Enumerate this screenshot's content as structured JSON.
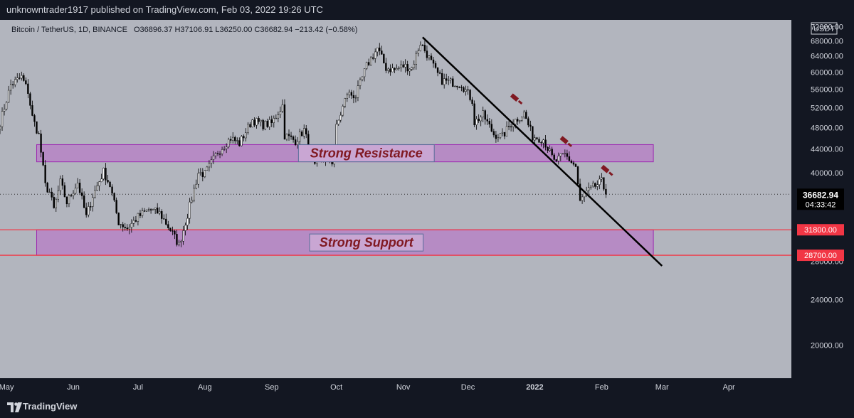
{
  "header": {
    "publisher_line": "unknowntrader1917 published on TradingView.com, Feb 03, 2022 19:26 UTC"
  },
  "footer": {
    "brand": "TradingView"
  },
  "colors": {
    "background": "#b2b5be",
    "zone_fill": "#ba68c8",
    "zone_stroke": "#9c27b0",
    "trendline": "#000000",
    "support_line": "#f23645",
    "annotation_text": "#801922",
    "axis_bg": "#131722"
  },
  "chart_data": {
    "type": "candlestick",
    "symbol_line": {
      "name": "Bitcoin / TetherUS, 1D, BINANCE",
      "ohlc": "O36896.37 H37106.91 L36250.00 C36682.94 −213.42 (−0.58%)"
    },
    "currency": "USDT",
    "y_scale": "log",
    "ylim": [
      17500,
      74000
    ],
    "y_ticks": [
      {
        "v": 72000,
        "label": "72000.00"
      },
      {
        "v": 68000,
        "label": "68000.00"
      },
      {
        "v": 64000,
        "label": "64000.00"
      },
      {
        "v": 60000,
        "label": "60000.00"
      },
      {
        "v": 56000,
        "label": "56000.00"
      },
      {
        "v": 52000,
        "label": "52000.00"
      },
      {
        "v": 48000,
        "label": "48000.00"
      },
      {
        "v": 44000,
        "label": "44000.00"
      },
      {
        "v": 40000,
        "label": "40000.00"
      },
      {
        "v": 28000,
        "label": "28000.00"
      },
      {
        "v": 24000,
        "label": "24000.00"
      },
      {
        "v": 20000,
        "label": "20000.00"
      }
    ],
    "x_range": [
      "2021-04-28",
      "2022-04-30"
    ],
    "x_ticks": [
      {
        "date": "2021-05-01",
        "label": "May",
        "bold": false
      },
      {
        "date": "2021-06-01",
        "label": "Jun",
        "bold": false
      },
      {
        "date": "2021-07-01",
        "label": "Jul",
        "bold": false
      },
      {
        "date": "2021-08-01",
        "label": "Aug",
        "bold": false
      },
      {
        "date": "2021-09-01",
        "label": "Sep",
        "bold": false
      },
      {
        "date": "2021-10-01",
        "label": "Oct",
        "bold": false
      },
      {
        "date": "2021-11-01",
        "label": "Nov",
        "bold": false
      },
      {
        "date": "2021-12-01",
        "label": "Dec",
        "bold": false
      },
      {
        "date": "2022-01-01",
        "label": "2022",
        "bold": true
      },
      {
        "date": "2022-02-01",
        "label": "Feb",
        "bold": false
      },
      {
        "date": "2022-03-01",
        "label": "Mar",
        "bold": false
      },
      {
        "date": "2022-04-01",
        "label": "Apr",
        "bold": false
      }
    ],
    "close_path": [
      [
        "2021-04-28",
        49000
      ],
      [
        "2021-05-03",
        57000
      ],
      [
        "2021-05-08",
        58800
      ],
      [
        "2021-05-11",
        55500
      ],
      [
        "2021-05-13",
        50000
      ],
      [
        "2021-05-16",
        46500
      ],
      [
        "2021-05-19",
        38000
      ],
      [
        "2021-05-21",
        37000
      ],
      [
        "2021-05-23",
        34500
      ],
      [
        "2021-05-26",
        38500
      ],
      [
        "2021-05-29",
        35500
      ],
      [
        "2021-06-03",
        38500
      ],
      [
        "2021-06-07",
        33500
      ],
      [
        "2021-06-10",
        36500
      ],
      [
        "2021-06-15",
        40200
      ],
      [
        "2021-06-18",
        38000
      ],
      [
        "2021-06-22",
        32800
      ],
      [
        "2021-06-26",
        32000
      ],
      [
        "2021-07-01",
        33500
      ],
      [
        "2021-07-06",
        34500
      ],
      [
        "2021-07-11",
        34000
      ],
      [
        "2021-07-16",
        31800
      ],
      [
        "2021-07-20",
        29900
      ],
      [
        "2021-07-24",
        33800
      ],
      [
        "2021-07-29",
        40000
      ],
      [
        "2021-08-01",
        39800
      ],
      [
        "2021-08-07",
        43500
      ],
      [
        "2021-08-13",
        46000
      ],
      [
        "2021-08-17",
        45000
      ],
      [
        "2021-08-23",
        49500
      ],
      [
        "2021-08-28",
        48500
      ],
      [
        "2021-09-01",
        48800
      ],
      [
        "2021-09-06",
        52500
      ],
      [
        "2021-09-07",
        46500
      ],
      [
        "2021-09-12",
        45500
      ],
      [
        "2021-09-16",
        47500
      ],
      [
        "2021-09-21",
        40800
      ],
      [
        "2021-09-24",
        42500
      ],
      [
        "2021-09-29",
        41800
      ],
      [
        "2021-10-01",
        48000
      ],
      [
        "2021-10-06",
        55000
      ],
      [
        "2021-10-10",
        54500
      ],
      [
        "2021-10-15",
        61500
      ],
      [
        "2021-10-20",
        66000
      ],
      [
        "2021-10-24",
        61000
      ],
      [
        "2021-10-28",
        60500
      ],
      [
        "2021-11-01",
        61500
      ],
      [
        "2021-11-05",
        61000
      ],
      [
        "2021-11-09",
        67500
      ],
      [
        "2021-11-12",
        64500
      ],
      [
        "2021-11-16",
        60200
      ],
      [
        "2021-11-19",
        58000
      ],
      [
        "2021-11-24",
        57500
      ],
      [
        "2021-11-28",
        57200
      ],
      [
        "2021-12-03",
        53500
      ],
      [
        "2021-12-04",
        49000
      ],
      [
        "2021-12-08",
        50500
      ],
      [
        "2021-12-13",
        46700
      ],
      [
        "2021-12-17",
        46300
      ],
      [
        "2021-12-21",
        48800
      ],
      [
        "2021-12-27",
        50800
      ],
      [
        "2021-12-31",
        46300
      ],
      [
        "2022-01-05",
        45800
      ],
      [
        "2022-01-10",
        41800
      ],
      [
        "2022-01-15",
        43000
      ],
      [
        "2022-01-20",
        41000
      ],
      [
        "2022-01-22",
        35500
      ],
      [
        "2022-01-24",
        36700
      ],
      [
        "2022-01-28",
        37700
      ],
      [
        "2022-02-01",
        38600
      ],
      [
        "2022-02-03",
        36683
      ]
    ],
    "zones": [
      {
        "name": "Strong Resistance",
        "from": "2021-05-15",
        "to": "2022-02-25",
        "low": 41800,
        "high": 44800
      },
      {
        "name": "Strong Support",
        "from": "2021-05-15",
        "to": "2022-02-25",
        "low": 28700,
        "high": 31800
      }
    ],
    "horizontal_lines": [
      31800,
      28700
    ],
    "trendline": {
      "from": [
        "2021-11-10",
        69000
      ],
      "to": [
        "2022-03-01",
        27500
      ]
    },
    "price_labels": [
      {
        "v": 31800,
        "label": "31800.00",
        "style": "red"
      },
      {
        "v": 28700,
        "label": "28700.00",
        "style": "red"
      },
      {
        "v": 36682.94,
        "label": "36682.94",
        "sub": "04:33:42",
        "style": "current"
      }
    ],
    "rejection_markers": [
      {
        "date": "2021-12-23",
        "v": 54000
      },
      {
        "date": "2022-01-15",
        "v": 45500
      },
      {
        "date": "2022-02-03",
        "v": 40500
      }
    ]
  }
}
